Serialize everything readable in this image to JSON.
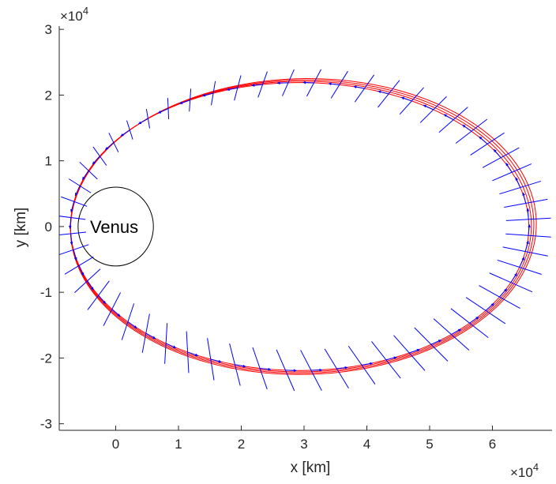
{
  "chart_data": {
    "type": "line",
    "title": "",
    "xlabel": "x [km]",
    "ylabel": "y [km]",
    "x_exponent_label": "×10",
    "x_exponent": "4",
    "y_exponent_label": "×10",
    "y_exponent": "4",
    "xlim": [
      -0.9,
      6.95
    ],
    "ylim": [
      -3.1,
      3.05
    ],
    "x_ticks": [
      0,
      1,
      2,
      3,
      4,
      5,
      6
    ],
    "y_ticks": [
      -3,
      -2,
      -1,
      0,
      1,
      2,
      3
    ],
    "x_tick_labels": [
      "0",
      "1",
      "2",
      "3",
      "4",
      "5",
      "6"
    ],
    "y_tick_labels": [
      "-3",
      "-2",
      "-1",
      "0",
      "1",
      "2",
      "3"
    ],
    "grid": false,
    "body": {
      "name": "Venus",
      "center": [
        0,
        0
      ],
      "radius": 0.6,
      "color": "#000000"
    },
    "orbit_color": "#ff0000",
    "vector_color": "#0000ff",
    "series": [
      {
        "periapsis": -0.72,
        "apoapsis": 6.58,
        "semi_minor": 2.19,
        "omega_deg": 0
      },
      {
        "periapsis": -0.72,
        "apoapsis": 6.62,
        "semi_minor": 2.21,
        "omega_deg": 0.35
      },
      {
        "periapsis": -0.72,
        "apoapsis": 6.66,
        "semi_minor": 2.23,
        "omega_deg": 0.7
      },
      {
        "periapsis": -0.72,
        "apoapsis": 6.7,
        "semi_minor": 2.25,
        "omega_deg": 1.05
      }
    ]
  }
}
